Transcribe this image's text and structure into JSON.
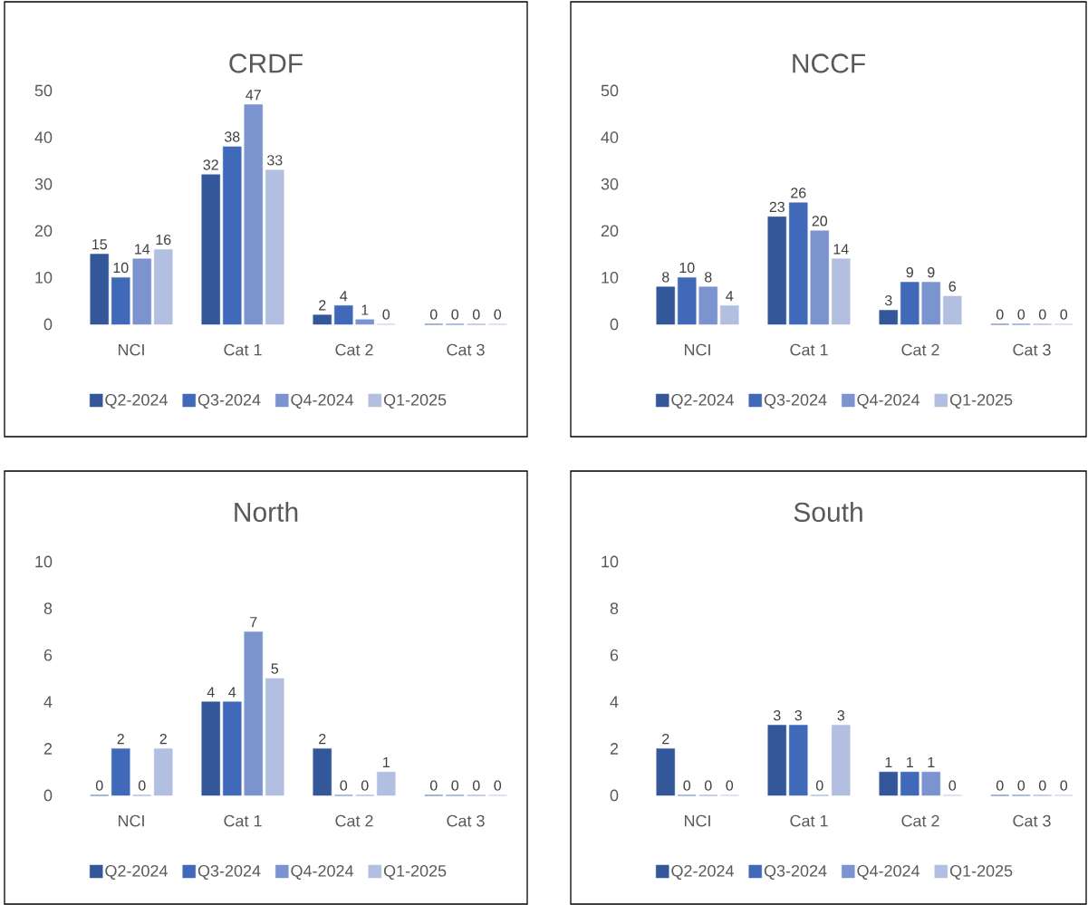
{
  "chart_data": [
    {
      "type": "bar",
      "title": "CRDF",
      "categories": [
        "NCI",
        "Cat 1",
        "Cat 2",
        "Cat 3"
      ],
      "ylim": [
        0,
        50
      ],
      "yticks": [
        0,
        10,
        20,
        30,
        40,
        50
      ],
      "data_labels": true,
      "legend": "bottom",
      "series": [
        {
          "name": "Q2-2024",
          "color": "#335799",
          "values": [
            15,
            32,
            2,
            0
          ]
        },
        {
          "name": "Q3-2024",
          "color": "#4169b9",
          "values": [
            10,
            38,
            4,
            0
          ]
        },
        {
          "name": "Q4-2024",
          "color": "#7b93cf",
          "values": [
            14,
            47,
            1,
            0
          ]
        },
        {
          "name": "Q1-2025",
          "color": "#b3bfe0",
          "values": [
            16,
            33,
            0,
            0
          ]
        }
      ]
    },
    {
      "type": "bar",
      "title": "NCCF",
      "categories": [
        "NCI",
        "Cat 1",
        "Cat 2",
        "Cat 3"
      ],
      "ylim": [
        0,
        50
      ],
      "yticks": [
        0,
        10,
        20,
        30,
        40,
        50
      ],
      "data_labels": true,
      "legend": "bottom",
      "series": [
        {
          "name": "Q2-2024",
          "color": "#335799",
          "values": [
            8,
            23,
            3,
            0
          ]
        },
        {
          "name": "Q3-2024",
          "color": "#4169b9",
          "values": [
            10,
            26,
            9,
            0
          ]
        },
        {
          "name": "Q4-2024",
          "color": "#7b93cf",
          "values": [
            8,
            20,
            9,
            0
          ]
        },
        {
          "name": "Q1-2025",
          "color": "#b3bfe0",
          "values": [
            4,
            14,
            6,
            0
          ]
        }
      ]
    },
    {
      "type": "bar",
      "title": "North",
      "categories": [
        "NCI",
        "Cat 1",
        "Cat 2",
        "Cat 3"
      ],
      "ylim": [
        0,
        10
      ],
      "yticks": [
        0,
        2,
        4,
        6,
        8,
        10
      ],
      "data_labels": true,
      "legend": "bottom",
      "series": [
        {
          "name": "Q2-2024",
          "color": "#335799",
          "values": [
            0,
            4,
            2,
            0
          ]
        },
        {
          "name": "Q3-2024",
          "color": "#4169b9",
          "values": [
            2,
            4,
            0,
            0
          ]
        },
        {
          "name": "Q4-2024",
          "color": "#7b93cf",
          "values": [
            0,
            7,
            0,
            0
          ]
        },
        {
          "name": "Q1-2025",
          "color": "#b3bfe0",
          "values": [
            2,
            5,
            1,
            0
          ]
        }
      ]
    },
    {
      "type": "bar",
      "title": "South",
      "categories": [
        "NCI",
        "Cat 1",
        "Cat 2",
        "Cat 3"
      ],
      "ylim": [
        0,
        10
      ],
      "yticks": [
        0,
        2,
        4,
        6,
        8,
        10
      ],
      "data_labels": true,
      "legend": "bottom",
      "series": [
        {
          "name": "Q2-2024",
          "color": "#335799",
          "values": [
            2,
            3,
            1,
            0
          ]
        },
        {
          "name": "Q3-2024",
          "color": "#4169b9",
          "values": [
            0,
            3,
            1,
            0
          ]
        },
        {
          "name": "Q4-2024",
          "color": "#7b93cf",
          "values": [
            0,
            0,
            1,
            0
          ]
        },
        {
          "name": "Q1-2025",
          "color": "#b3bfe0",
          "values": [
            0,
            3,
            0,
            0
          ]
        }
      ]
    }
  ]
}
